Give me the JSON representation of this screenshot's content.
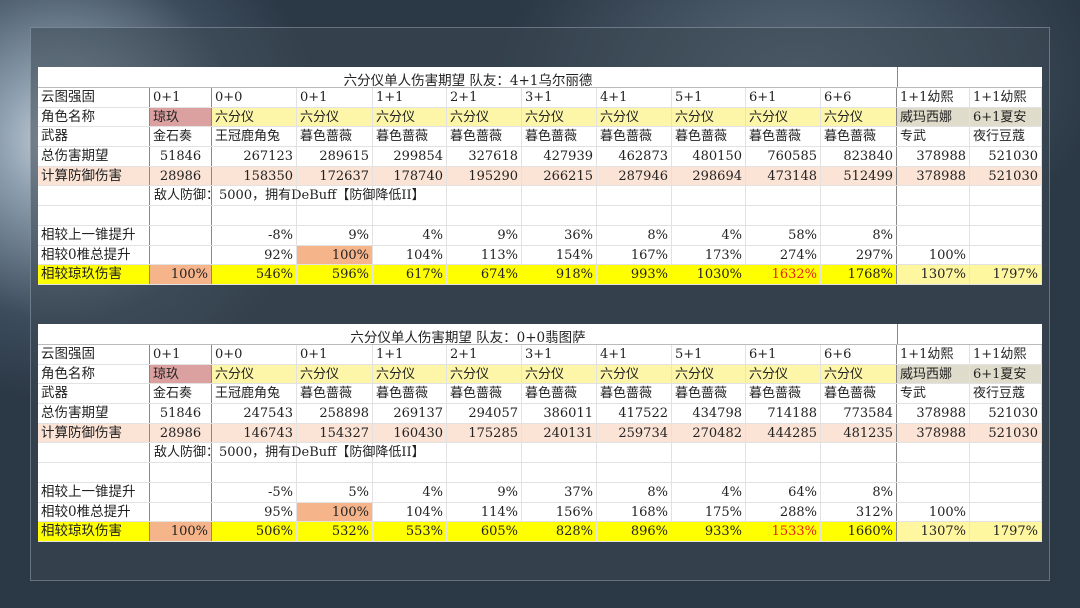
{
  "tables": [
    {
      "title": "六分仪单人伤害期望 队友：4+1乌尔丽德",
      "constellation": [
        "云图强固",
        "0+1",
        "0+0",
        "0+1",
        "1+1",
        "2+1",
        "3+1",
        "4+1",
        "5+1",
        "6+1",
        "6+6",
        "1+1幼熙",
        "1+1幼熙"
      ],
      "character": [
        "角色名称",
        "琼玖",
        "六分仪",
        "六分仪",
        "六分仪",
        "六分仪",
        "六分仪",
        "六分仪",
        "六分仪",
        "六分仪",
        "六分仪",
        "威玛西娜",
        "6+1夏安"
      ],
      "weapon": [
        "武器",
        "金石奏",
        "王冠鹿角兔",
        "暮色蔷薇",
        "暮色蔷薇",
        "暮色蔷薇",
        "暮色蔷薇",
        "暮色蔷薇",
        "暮色蔷薇",
        "暮色蔷薇",
        "暮色蔷薇",
        "专武",
        "夜行豆蔻"
      ],
      "total": [
        "总伤害期望",
        "51846",
        "267123",
        "289615",
        "299854",
        "327618",
        "427939",
        "462873",
        "480150",
        "760585",
        "823840",
        "378988",
        "521030"
      ],
      "defense": [
        "计算防御伤害",
        "28986",
        "158350",
        "172637",
        "178740",
        "195290",
        "266215",
        "287946",
        "298694",
        "473148",
        "512499",
        "378988",
        "521030"
      ],
      "note": "敌人防御：5000，拥有DeBuff【防御降低II】",
      "vs_prev": [
        "相较上一锥提升",
        "",
        "-8%",
        "9%",
        "4%",
        "9%",
        "36%",
        "8%",
        "4%",
        "58%",
        "8%",
        "",
        ""
      ],
      "vs_zero": [
        "相较0椎总提升",
        "",
        "92%",
        "100%",
        "104%",
        "113%",
        "154%",
        "167%",
        "173%",
        "274%",
        "297%",
        "100%",
        ""
      ],
      "vs_qiongjiu": [
        "相较琼玖伤害",
        "100%",
        "546%",
        "596%",
        "617%",
        "674%",
        "918%",
        "993%",
        "1030%",
        "1632%",
        "1768%",
        "1307%",
        "1797%"
      ]
    },
    {
      "title": "六分仪单人伤害期望 队友：0+0翡图萨",
      "constellation": [
        "云图强固",
        "0+1",
        "0+0",
        "0+1",
        "1+1",
        "2+1",
        "3+1",
        "4+1",
        "5+1",
        "6+1",
        "6+6",
        "1+1幼熙",
        "1+1幼熙"
      ],
      "character": [
        "角色名称",
        "琼玖",
        "六分仪",
        "六分仪",
        "六分仪",
        "六分仪",
        "六分仪",
        "六分仪",
        "六分仪",
        "六分仪",
        "六分仪",
        "威玛西娜",
        "6+1夏安"
      ],
      "weapon": [
        "武器",
        "金石奏",
        "王冠鹿角兔",
        "暮色蔷薇",
        "暮色蔷薇",
        "暮色蔷薇",
        "暮色蔷薇",
        "暮色蔷薇",
        "暮色蔷薇",
        "暮色蔷薇",
        "暮色蔷薇",
        "专武",
        "夜行豆蔻"
      ],
      "total": [
        "总伤害期望",
        "51846",
        "247543",
        "258898",
        "269137",
        "294057",
        "386011",
        "417522",
        "434798",
        "714188",
        "773584",
        "378988",
        "521030"
      ],
      "defense": [
        "计算防御伤害",
        "28986",
        "146743",
        "154327",
        "160430",
        "175285",
        "240131",
        "259734",
        "270482",
        "444285",
        "481235",
        "378988",
        "521030"
      ],
      "note": "敌人防御：5000，拥有DeBuff【防御降低II】",
      "vs_prev": [
        "相较上一锥提升",
        "",
        "-5%",
        "5%",
        "4%",
        "9%",
        "37%",
        "8%",
        "4%",
        "64%",
        "8%",
        "",
        ""
      ],
      "vs_zero": [
        "相较0椎总提升",
        "",
        "95%",
        "100%",
        "104%",
        "114%",
        "156%",
        "168%",
        "175%",
        "288%",
        "312%",
        "100%",
        ""
      ],
      "vs_qiongjiu": [
        "相较琼玖伤害",
        "100%",
        "506%",
        "532%",
        "553%",
        "605%",
        "828%",
        "896%",
        "933%",
        "1533%",
        "1660%",
        "1307%",
        "1797%"
      ]
    }
  ],
  "colors": {
    "pink": "#dba0a0",
    "yellow_light": "#fdf6a8",
    "beige": "#e0dccb",
    "peach": "#fbe3d6",
    "orange": "#f6b48a",
    "yellow": "#ffff00",
    "yellow_pale": "#fff6a0",
    "highlight_text": "#e8201a"
  }
}
